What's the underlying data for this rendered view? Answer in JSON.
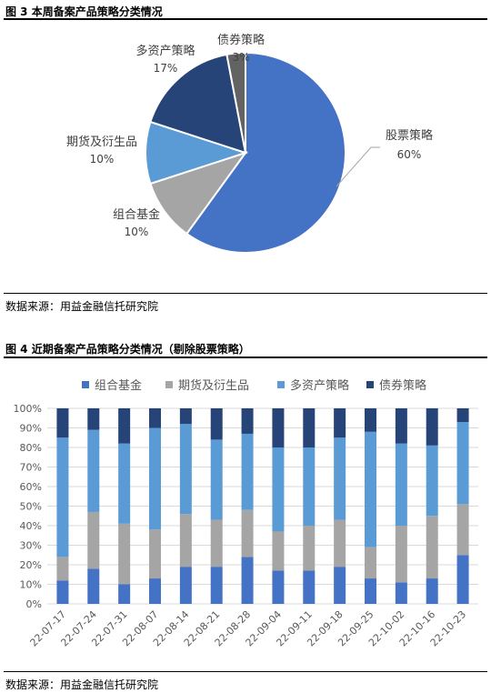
{
  "figure3": {
    "title": "图 3   本周备案产品策略分类情况",
    "source": "数据来源：用益金融信托研究院"
  },
  "figure4": {
    "title": "图 4   近期备案产品策略分类情况（剔除股票策略）",
    "source": "数据来源：用益金融信托研究院"
  },
  "chart_data": [
    {
      "type": "pie",
      "title": "",
      "slices": [
        {
          "label": "股票策略",
          "value": 60,
          "value_label": "60%",
          "color": "#4472C4"
        },
        {
          "label": "组合基金",
          "value": 10,
          "value_label": "10%",
          "color": "#A5A5A5"
        },
        {
          "label": "期货及衍生品",
          "value": 10,
          "value_label": "10%",
          "color": "#5B9BD5"
        },
        {
          "label": "多资产策略",
          "value": 17,
          "value_label": "17%",
          "color": "#264478"
        },
        {
          "label": "债券策略",
          "value": 3,
          "value_label": "3%",
          "color": "#636363"
        }
      ]
    },
    {
      "type": "bar",
      "stacked": "percent",
      "legend_position": "top",
      "ylim": [
        0,
        100
      ],
      "yticks": [
        "0%",
        "10%",
        "20%",
        "30%",
        "40%",
        "50%",
        "60%",
        "70%",
        "80%",
        "90%",
        "100%"
      ],
      "categories": [
        "22-07-17",
        "22-07-24",
        "22-07-31",
        "22-08-07",
        "22-08-14",
        "22-08-21",
        "22-08-28",
        "22-09-04",
        "22-09-11",
        "22-09-18",
        "22-09-25",
        "22-10-02",
        "22-10-16",
        "22-10-23"
      ],
      "series": [
        {
          "name": "组合基金",
          "color": "#4472C4",
          "values": [
            12,
            18,
            10,
            13,
            19,
            19,
            24,
            17,
            17,
            19,
            13,
            11,
            13,
            25
          ]
        },
        {
          "name": "期货及衍生品",
          "color": "#A5A5A5",
          "values": [
            12,
            29,
            31,
            25,
            27,
            24,
            24,
            20,
            23,
            24,
            16,
            29,
            32,
            26
          ]
        },
        {
          "name": "多资产策略",
          "color": "#5B9BD5",
          "values": [
            61,
            42,
            41,
            52,
            46,
            41,
            39,
            43,
            40,
            42,
            59,
            42,
            36,
            42
          ]
        },
        {
          "name": "债券策略",
          "color": "#264478",
          "values": [
            15,
            11,
            18,
            10,
            8,
            16,
            13,
            20,
            20,
            15,
            12,
            18,
            19,
            7
          ]
        }
      ]
    }
  ]
}
